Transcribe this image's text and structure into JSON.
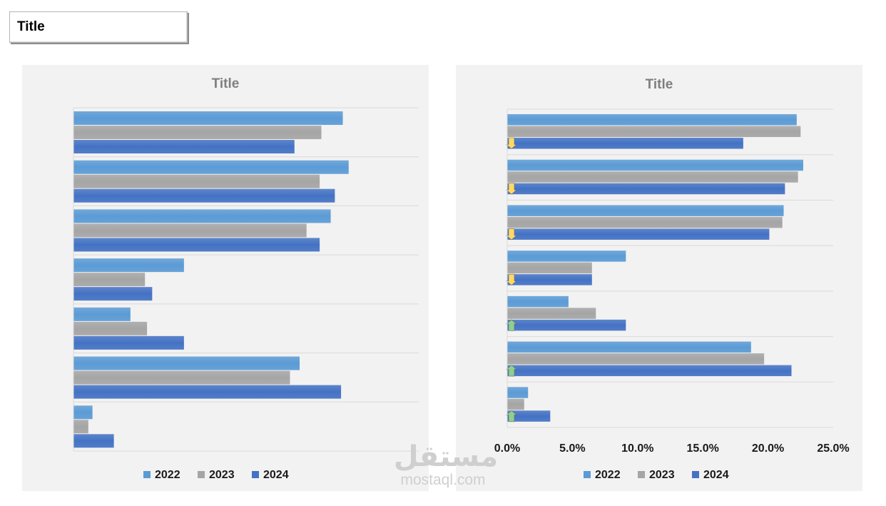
{
  "header": {
    "title": "Title"
  },
  "watermark": {
    "arabic": "مستقل",
    "latin": "mostaql.com"
  },
  "colors": {
    "2022": "#5b9bd5",
    "2023": "#a5a5a5",
    "2024": "#4472c4",
    "up_arrow": "#8fcf8f",
    "down_arrow": "#ffd966",
    "gridline": "#d9d9d9",
    "panel": "#f2f2f2"
  },
  "chart_data": [
    {
      "type": "bar",
      "orientation": "horizontal",
      "title": "Title",
      "categories": [
        "",
        "",
        "",
        "",
        "",
        "",
        ""
      ],
      "series": [
        {
          "name": "2022",
          "values": [
            78,
            79.7,
            74.5,
            32,
            16.5,
            65.5,
            5.5
          ]
        },
        {
          "name": "2023",
          "values": [
            71.8,
            71.3,
            67.5,
            20.7,
            21.3,
            62.7,
            4.3
          ]
        },
        {
          "name": "2024",
          "values": [
            64,
            75.7,
            71.3,
            22.8,
            32,
            77.5,
            11.7
          ]
        }
      ],
      "xlim": [
        0,
        100
      ],
      "x_axis_labels_visible": false,
      "grid": true,
      "legend": "bottom"
    },
    {
      "type": "bar",
      "orientation": "horizontal",
      "title": "Title",
      "categories": [
        "",
        "",
        "",
        "",
        "",
        "",
        ""
      ],
      "series": [
        {
          "name": "2022",
          "values": [
            22.2,
            22.7,
            21.2,
            9.1,
            4.7,
            18.7,
            1.6
          ]
        },
        {
          "name": "2023",
          "values": [
            22.5,
            22.3,
            21.1,
            6.5,
            6.8,
            19.7,
            1.3
          ]
        },
        {
          "name": "2024",
          "values": [
            18.1,
            21.3,
            20.1,
            6.5,
            9.1,
            21.8,
            3.3
          ]
        }
      ],
      "trend_markers": [
        "down",
        "down",
        "down",
        "down",
        "up",
        "up",
        "up"
      ],
      "xlim": [
        0,
        25
      ],
      "x_ticks": [
        "0.0%",
        "5.0%",
        "10.0%",
        "15.0%",
        "20.0%",
        "25.0%"
      ],
      "grid": true,
      "legend": "bottom"
    }
  ]
}
